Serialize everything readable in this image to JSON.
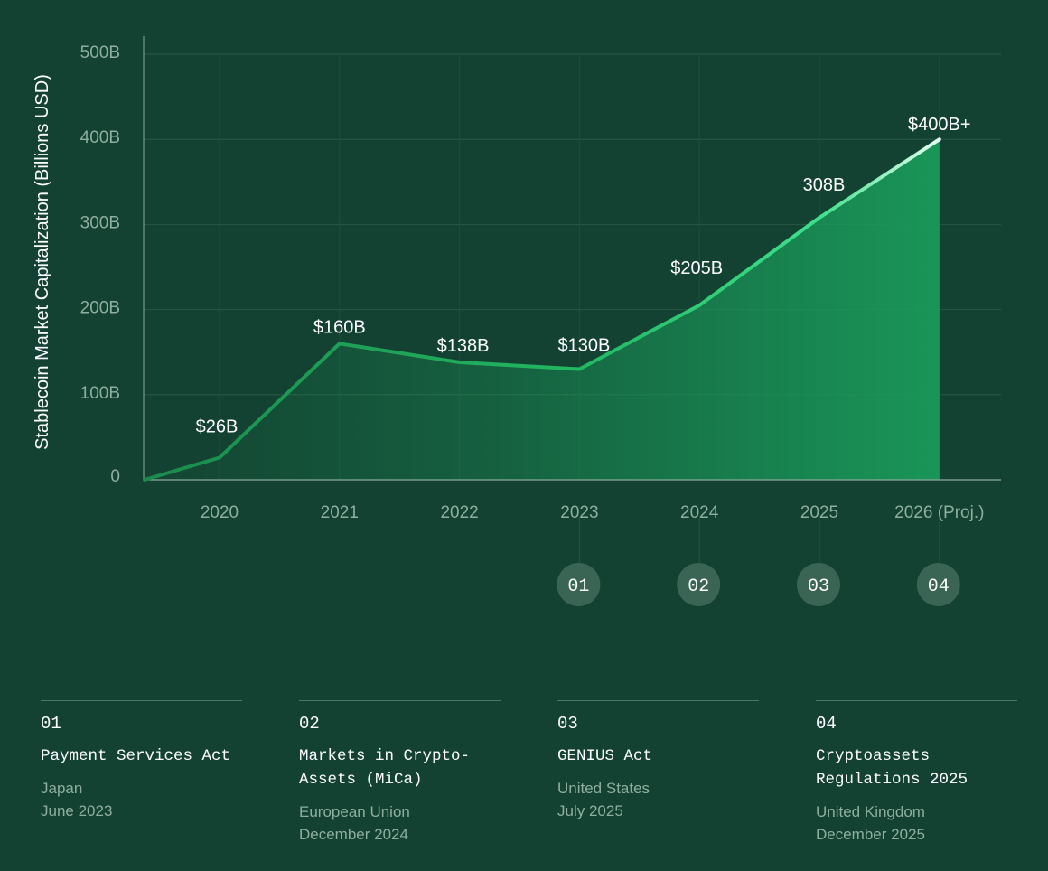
{
  "chart_data": {
    "type": "area",
    "ylabel": "Stablecoin Market Capitalization (Billions USD)",
    "xlabel": "",
    "ylim": [
      0,
      500
    ],
    "y_ticks": [
      "0",
      "100B",
      "200B",
      "300B",
      "400B",
      "500B"
    ],
    "categories": [
      "2020",
      "2021",
      "2022",
      "2023",
      "2024",
      "2025",
      "2026 (Proj.)"
    ],
    "series": [
      {
        "values": [
          26,
          160,
          138,
          130,
          205,
          308,
          400
        ],
        "labels": [
          "$26B",
          "$160B",
          "$138B",
          "$130B",
          "$205B",
          "308B",
          "$400B+"
        ]
      }
    ],
    "start_value": 0,
    "grid": true,
    "colors": {
      "line": "#1f9a55",
      "line_bright": "#2fd27a",
      "fill": "#1a9a5a",
      "background": "#134232"
    },
    "markers": [
      {
        "number": "01",
        "category": "2023"
      },
      {
        "number": "02",
        "category": "2024"
      },
      {
        "number": "03",
        "category": "2025"
      },
      {
        "number": "04",
        "category": "2026 (Proj.)"
      }
    ]
  },
  "legend": [
    {
      "number": "01",
      "name": "Payment Services Act",
      "region": "Japan",
      "date": "June 2023"
    },
    {
      "number": "02",
      "name": "Markets in Crypto-Assets (MiCa)",
      "region": "European Union",
      "date": "December 2024"
    },
    {
      "number": "03",
      "name": "GENIUS Act",
      "region": "United States",
      "date": "July 2025"
    },
    {
      "number": "04",
      "name": "Cryptoassets Regulations 2025",
      "region": "United Kingdom",
      "date": "December 2025"
    }
  ]
}
